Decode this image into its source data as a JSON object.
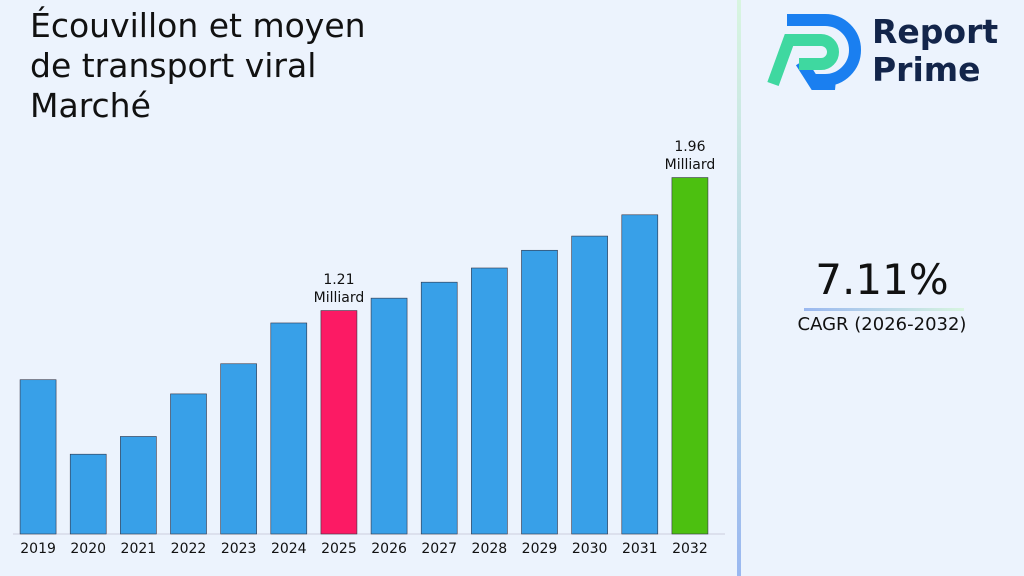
{
  "chart_data": {
    "type": "bar",
    "title": "Écouvillon et moyen de transport viral Marché",
    "categories": [
      "2019",
      "2020",
      "2021",
      "2022",
      "2023",
      "2024",
      "2025",
      "2026",
      "2027",
      "2028",
      "2029",
      "2030",
      "2031",
      "2032"
    ],
    "values": [
      0.82,
      0.4,
      0.5,
      0.74,
      0.91,
      1.14,
      1.21,
      1.28,
      1.37,
      1.45,
      1.55,
      1.63,
      1.75,
      1.96
    ],
    "value_labels": [
      null,
      null,
      null,
      null,
      null,
      null,
      "1.21 Milliard",
      null,
      null,
      null,
      null,
      null,
      null,
      "1.96 Milliard"
    ],
    "colors": [
      "#38a0e8",
      "#38a0e8",
      "#38a0e8",
      "#38a0e8",
      "#38a0e8",
      "#38a0e8",
      "#fc1a64",
      "#38a0e8",
      "#38a0e8",
      "#38a0e8",
      "#38a0e8",
      "#38a0e8",
      "#38a0e8",
      "#4cc010"
    ],
    "ylim": [
      -0.05,
      2.2
    ]
  },
  "logo": {
    "line1": "Report",
    "line2": "Prime"
  },
  "cagr": {
    "value": "7.11%",
    "label": "CAGR (2026-2032)"
  }
}
